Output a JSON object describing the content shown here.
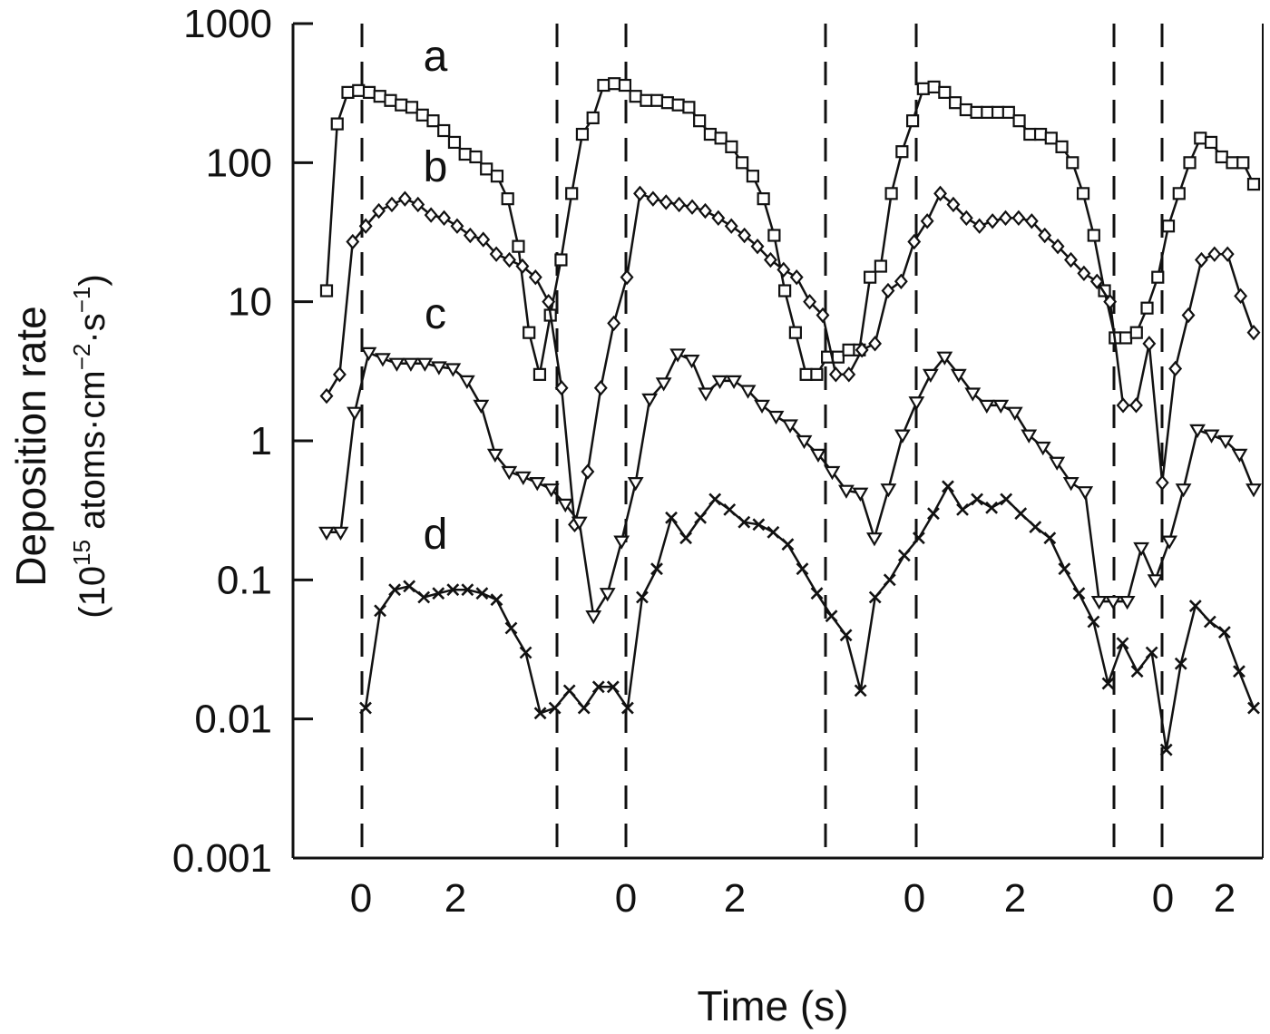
{
  "chart_data": {
    "type": "line",
    "xlabel": "Time (s)",
    "ylabel": "Deposition rate",
    "ylabel_units": {
      "open": "(10",
      "exp1": "15",
      "mid": " atoms·cm",
      "exp2": "−2",
      "mid2": "·s",
      "exp3": "−1",
      "close": ")"
    },
    "y_scale": "log",
    "ylim": [
      0.001,
      1000
    ],
    "y_ticks": [
      {
        "value": 1000,
        "label": "1000"
      },
      {
        "value": 100,
        "label": "100"
      },
      {
        "value": 10,
        "label": "10"
      },
      {
        "value": 1,
        "label": "1"
      },
      {
        "value": 0.1,
        "label": "0.1"
      },
      {
        "value": 0.01,
        "label": "0.01"
      },
      {
        "value": 0.001,
        "label": "0.001"
      }
    ],
    "x_tick_labels": [
      "0",
      "2",
      "0",
      "2",
      "0",
      "2",
      "0",
      "2"
    ],
    "grid": false,
    "series": [
      {
        "name": "a",
        "marker": "square",
        "values": [
          12,
          190,
          320,
          330,
          320,
          300,
          280,
          260,
          250,
          220,
          200,
          170,
          140,
          115,
          110,
          90,
          80,
          55,
          25,
          6,
          3,
          8,
          20,
          60,
          160,
          210,
          360,
          370,
          360,
          300,
          280,
          280,
          270,
          260,
          250,
          200,
          160,
          150,
          130,
          100,
          80,
          55,
          30,
          12,
          6,
          3,
          3,
          4,
          4,
          4.5,
          4.5,
          15,
          18,
          60,
          120,
          200,
          340,
          350,
          320,
          270,
          240,
          230,
          230,
          230,
          230,
          200,
          160,
          160,
          150,
          130,
          100,
          60,
          30,
          12,
          5.5,
          5.5,
          6,
          9,
          15,
          35,
          60,
          100,
          150,
          140,
          110,
          100,
          100,
          70
        ]
      },
      {
        "name": "b",
        "marker": "diamond",
        "values": [
          2.1,
          3,
          27,
          35,
          45,
          50,
          55,
          50,
          42,
          40,
          35,
          30,
          28,
          22,
          20,
          18,
          15,
          10,
          2.4,
          0.25,
          0.6,
          2.4,
          7,
          15,
          60,
          55,
          52,
          50,
          48,
          45,
          40,
          35,
          30,
          25,
          20,
          17,
          15,
          10,
          8,
          3,
          3,
          4.5,
          5,
          12,
          14,
          27,
          38,
          60,
          50,
          40,
          35,
          38,
          40,
          40,
          38,
          30,
          25,
          20,
          16,
          14,
          10,
          1.8,
          1.8,
          5,
          0.5,
          3.3,
          8,
          20,
          22,
          22,
          11,
          6
        ]
      },
      {
        "name": "c",
        "marker": "triangle",
        "values": [
          0.22,
          0.22,
          1.6,
          4.3,
          3.9,
          3.6,
          3.6,
          3.6,
          3.4,
          3.3,
          2.7,
          1.8,
          0.8,
          0.6,
          0.55,
          0.5,
          0.45,
          0.35,
          0.26,
          0.055,
          0.08,
          0.19,
          0.5,
          2,
          2.6,
          4.2,
          3.8,
          2.2,
          2.7,
          2.7,
          2.3,
          1.8,
          1.5,
          1.3,
          1,
          0.8,
          0.6,
          0.44,
          0.42,
          0.2,
          0.45,
          1.1,
          1.9,
          3,
          4,
          3,
          2.2,
          1.8,
          1.8,
          1.6,
          1.1,
          0.9,
          0.7,
          0.5,
          0.43,
          0.07,
          0.07,
          0.07,
          0.17,
          0.1,
          0.19,
          0.45,
          1.2,
          1.1,
          1.0,
          0.8,
          0.45
        ]
      },
      {
        "name": "d",
        "marker": "cross",
        "values": [
          0.012,
          0.06,
          0.085,
          0.09,
          0.075,
          0.08,
          0.085,
          0.085,
          0.08,
          0.072,
          0.045,
          0.03,
          0.011,
          0.012,
          0.016,
          0.012,
          0.017,
          0.017,
          0.012,
          0.075,
          0.12,
          0.28,
          0.2,
          0.28,
          0.38,
          0.32,
          0.26,
          0.25,
          0.22,
          0.18,
          0.12,
          0.08,
          0.055,
          0.04,
          0.016,
          0.075,
          0.1,
          0.15,
          0.2,
          0.3,
          0.47,
          0.32,
          0.38,
          0.33,
          0.38,
          0.3,
          0.24,
          0.2,
          0.12,
          0.08,
          0.05,
          0.018,
          0.035,
          0.022,
          0.03,
          0.006,
          0.025,
          0.065,
          0.05,
          0.042,
          0.022,
          0.012
        ]
      }
    ]
  }
}
